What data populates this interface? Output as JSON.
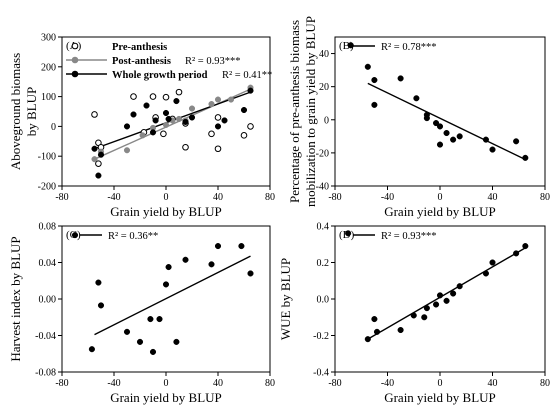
{
  "chart_data": [
    {
      "panel_label": "(A)",
      "type": "scatter",
      "xlabel": "Grain yield by BLUP",
      "ylabel": "Aboveground biomass by BLUP",
      "xlim": [
        -80,
        80
      ],
      "ylim": [
        -200,
        300
      ],
      "xticks": [
        -80,
        -40,
        0,
        40,
        80
      ],
      "yticks": [
        -200,
        -100,
        0,
        100,
        200,
        300
      ],
      "series": [
        {
          "name": "Pre-anthesis",
          "marker": "open-circle",
          "color": "#000000",
          "points": [
            [
              -55,
              40
            ],
            [
              -52,
              -125
            ],
            [
              -52,
              -55
            ],
            [
              -50,
              -70
            ],
            [
              -25,
              100
            ],
            [
              -17,
              -20
            ],
            [
              -10,
              100
            ],
            [
              -8,
              30
            ],
            [
              -2,
              -25
            ],
            [
              0,
              98
            ],
            [
              5,
              25
            ],
            [
              10,
              115
            ],
            [
              15,
              10
            ],
            [
              15,
              -70
            ],
            [
              35,
              -25
            ],
            [
              40,
              30
            ],
            [
              40,
              -75
            ],
            [
              60,
              -30
            ],
            [
              65,
              0
            ]
          ]
        },
        {
          "name": "Post-anthesis",
          "marker": "filled-circle",
          "color": "#888888",
          "r2_label": "R² = 0.93***",
          "fit": [
            [
              -55,
              -110
            ],
            [
              65,
              125
            ]
          ],
          "points": [
            [
              -55,
              -110
            ],
            [
              -50,
              -85
            ],
            [
              -30,
              -80
            ],
            [
              -18,
              -30
            ],
            [
              -10,
              -5
            ],
            [
              0,
              5
            ],
            [
              5,
              20
            ],
            [
              10,
              25
            ],
            [
              15,
              20
            ],
            [
              20,
              60
            ],
            [
              35,
              75
            ],
            [
              40,
              90
            ],
            [
              50,
              90
            ],
            [
              65,
              130
            ]
          ]
        },
        {
          "name": "Whole growth period",
          "marker": "filled-circle",
          "color": "#000000",
          "r2_label": "R² = 0.41**",
          "fit": [
            [
              -55,
              -75
            ],
            [
              65,
              115
            ]
          ],
          "points": [
            [
              -55,
              -75
            ],
            [
              -52,
              -165
            ],
            [
              -50,
              -95
            ],
            [
              -30,
              0
            ],
            [
              -25,
              40
            ],
            [
              -15,
              70
            ],
            [
              -10,
              -20
            ],
            [
              -8,
              20
            ],
            [
              0,
              45
            ],
            [
              2,
              25
            ],
            [
              8,
              85
            ],
            [
              15,
              15
            ],
            [
              20,
              30
            ],
            [
              40,
              0
            ],
            [
              45,
              20
            ],
            [
              60,
              55
            ],
            [
              65,
              120
            ]
          ]
        }
      ]
    },
    {
      "panel_label": "(B)",
      "type": "scatter",
      "xlabel": "Grain yield by BLUP",
      "ylabel": "Percentage of pre-anthesis biomass mobilization to grain yield by BLUP",
      "xlim": [
        -80,
        80
      ],
      "ylim": [
        -40,
        50
      ],
      "xticks": [
        -80,
        -40,
        0,
        40,
        80
      ],
      "yticks": [
        -40,
        -20,
        0,
        20,
        40
      ],
      "series": [
        {
          "name": "",
          "marker": "filled-circle",
          "color": "#000000",
          "r2_label": "R² = 0.78***",
          "fit": [
            [
              -55,
              22
            ],
            [
              65,
              -24
            ]
          ],
          "points": [
            [
              -68,
              45
            ],
            [
              -55,
              32
            ],
            [
              -50,
              24
            ],
            [
              -50,
              9
            ],
            [
              -30,
              25
            ],
            [
              -18,
              13
            ],
            [
              -10,
              3
            ],
            [
              -10,
              1
            ],
            [
              -3,
              -2
            ],
            [
              0,
              -15
            ],
            [
              0,
              -4
            ],
            [
              5,
              -8
            ],
            [
              10,
              -12
            ],
            [
              15,
              -10
            ],
            [
              35,
              -12
            ],
            [
              40,
              -18
            ],
            [
              58,
              -13
            ],
            [
              65,
              -23
            ]
          ]
        }
      ]
    },
    {
      "panel_label": "(C)",
      "type": "scatter",
      "xlabel": "Grain yield by BLUP",
      "ylabel": "Harvest index by BLUP",
      "xlim": [
        -80,
        80
      ],
      "ylim": [
        -0.08,
        0.08
      ],
      "xticks": [
        -80,
        -40,
        0,
        40,
        80
      ],
      "yticks": [
        -0.08,
        -0.04,
        0.0,
        0.04,
        0.08
      ],
      "series": [
        {
          "name": "",
          "marker": "filled-circle",
          "color": "#000000",
          "r2_label": "R² = 0.36**",
          "fit": [
            [
              -55,
              -0.039
            ],
            [
              65,
              0.047
            ]
          ],
          "points": [
            [
              -70,
              0.07
            ],
            [
              -57,
              -0.055
            ],
            [
              -52,
              0.018
            ],
            [
              -50,
              -0.007
            ],
            [
              -30,
              -0.036
            ],
            [
              -20,
              -0.047
            ],
            [
              -12,
              -0.022
            ],
            [
              -10,
              -0.058
            ],
            [
              -5,
              -0.022
            ],
            [
              0,
              0.016
            ],
            [
              2,
              0.035
            ],
            [
              8,
              -0.047
            ],
            [
              15,
              0.043
            ],
            [
              35,
              0.038
            ],
            [
              40,
              0.058
            ],
            [
              58,
              0.058
            ],
            [
              65,
              0.028
            ]
          ]
        }
      ]
    },
    {
      "panel_label": "(D)",
      "type": "scatter",
      "xlabel": "Grain yield by BLUP",
      "ylabel": "WUE by BLUP",
      "xlim": [
        -80,
        80
      ],
      "ylim": [
        -0.4,
        0.4
      ],
      "xticks": [
        -80,
        -40,
        0,
        40,
        80
      ],
      "yticks": [
        -0.4,
        -0.2,
        0.0,
        0.2,
        0.4
      ],
      "series": [
        {
          "name": "",
          "marker": "filled-circle",
          "color": "#000000",
          "r2_label": "R² = 0.93***",
          "fit": [
            [
              -55,
              -0.22
            ],
            [
              65,
              0.28
            ]
          ],
          "points": [
            [
              -70,
              0.36
            ],
            [
              -55,
              -0.22
            ],
            [
              -50,
              -0.11
            ],
            [
              -48,
              -0.18
            ],
            [
              -30,
              -0.17
            ],
            [
              -20,
              -0.09
            ],
            [
              -12,
              -0.1
            ],
            [
              -10,
              -0.05
            ],
            [
              -3,
              -0.03
            ],
            [
              0,
              0.02
            ],
            [
              5,
              -0.01
            ],
            [
              10,
              0.03
            ],
            [
              15,
              0.07
            ],
            [
              35,
              0.14
            ],
            [
              40,
              0.2
            ],
            [
              58,
              0.25
            ],
            [
              65,
              0.29
            ]
          ]
        }
      ]
    }
  ]
}
